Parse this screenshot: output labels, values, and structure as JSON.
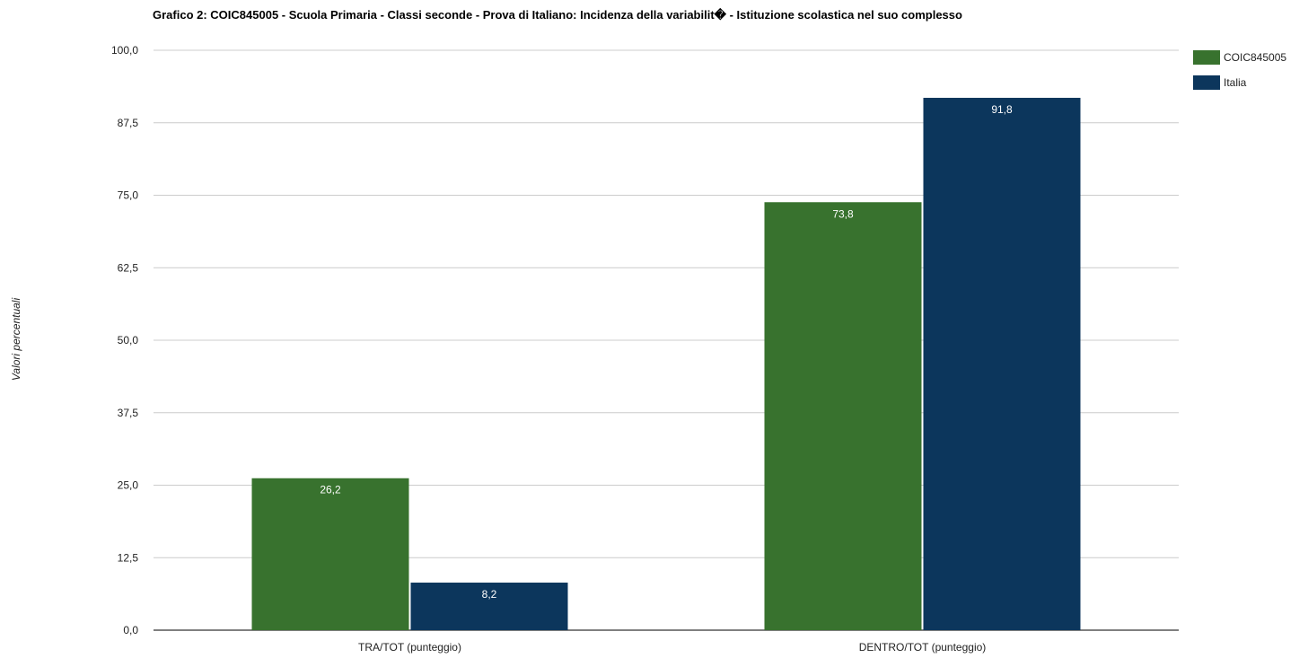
{
  "chart_data": {
    "type": "bar",
    "title": "Grafico 2: COIC845005 - Scuola Primaria - Classi seconde - Prova di Italiano: Incidenza della variabilit� - Istituzione scolastica nel suo complesso",
    "xlabel": "",
    "ylabel": "Valori percentuali",
    "categories": [
      "TRA/TOT (punteggio)",
      "DENTRO/TOT (punteggio)"
    ],
    "series": [
      {
        "name": "COIC845005",
        "color": "#38722e",
        "values": [
          26.2,
          73.8
        ],
        "labels": [
          "26,2",
          "73,8"
        ]
      },
      {
        "name": "Italia",
        "color": "#0c365c",
        "values": [
          8.2,
          91.8
        ],
        "labels": [
          "8,2",
          "91,8"
        ]
      }
    ],
    "ylim": [
      0,
      100
    ],
    "yticks": [
      0,
      12.5,
      25,
      37.5,
      50,
      62.5,
      75,
      87.5,
      100
    ],
    "ytick_labels": [
      "0,0",
      "12,5",
      "25,0",
      "37,5",
      "50,0",
      "62,5",
      "75,0",
      "87,5",
      "100,0"
    ],
    "grid": true,
    "legend_position": "top-right"
  }
}
